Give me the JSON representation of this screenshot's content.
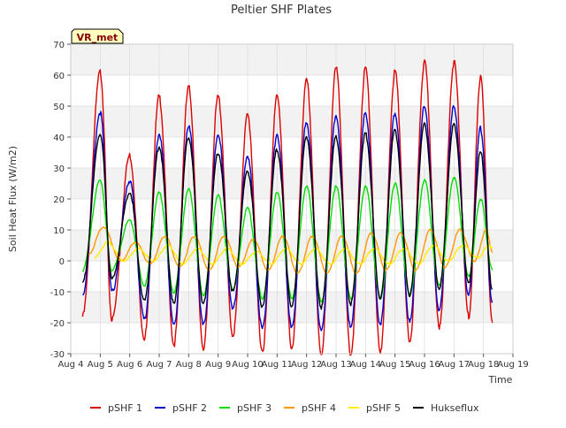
{
  "chart_data": {
    "type": "line",
    "title": "Peltier SHF Plates",
    "xlabel": "Time",
    "ylabel": "Soil Heat Flux (W/m2)",
    "badge": "VR_met",
    "ylim": [
      -30,
      70
    ],
    "yticks": [
      -30,
      -20,
      -10,
      0,
      10,
      20,
      30,
      40,
      50,
      60,
      70
    ],
    "xlim": [
      4,
      19
    ],
    "xticks": [
      {
        "day": 4,
        "label": "Aug 4"
      },
      {
        "day": 5,
        "label": "Aug 5"
      },
      {
        "day": 6,
        "label": "Aug 6"
      },
      {
        "day": 7,
        "label": "Aug 7"
      },
      {
        "day": 8,
        "label": "Aug 8"
      },
      {
        "day": 9,
        "label": "Aug 9"
      },
      {
        "day": 10,
        "label": "Aug 10"
      },
      {
        "day": 11,
        "label": "Aug 11"
      },
      {
        "day": 12,
        "label": "Aug 12"
      },
      {
        "day": 13,
        "label": "Aug 13"
      },
      {
        "day": 14,
        "label": "Aug 14"
      },
      {
        "day": 15,
        "label": "Aug 15"
      },
      {
        "day": 16,
        "label": "Aug 16"
      },
      {
        "day": 17,
        "label": "Aug 17"
      },
      {
        "day": 18,
        "label": "Aug 18"
      },
      {
        "day": 19,
        "label": "Aug 19"
      }
    ],
    "grid": true,
    "legend": "bottom",
    "series": [
      {
        "name": "pSHF 1",
        "color": "#dd0000",
        "peak_day": [
          5.0,
          6.0,
          7.0,
          8.0,
          9.0,
          10.0,
          11.0,
          12.0,
          13.0,
          14.0,
          15.0,
          16.0,
          17.0,
          17.9
        ],
        "peak_value": [
          61,
          34,
          53,
          56,
          53,
          47,
          53,
          58,
          62,
          62,
          61,
          64,
          64,
          59
        ],
        "trough_day": [
          4.4,
          5.4,
          6.5,
          7.5,
          8.5,
          9.5,
          10.5,
          11.5,
          12.5,
          13.5,
          14.5,
          15.5,
          16.5,
          17.5,
          18.3
        ],
        "trough_value": [
          -18,
          -19,
          -25,
          -27,
          -28,
          -24,
          -29,
          -28,
          -30,
          -30,
          -29,
          -26,
          -21,
          -18,
          -20
        ]
      },
      {
        "name": "pSHF 2",
        "color": "#0000cc",
        "peak_day": [
          5.0,
          6.0,
          7.0,
          8.0,
          9.0,
          10.0,
          11.0,
          12.0,
          13.0,
          14.0,
          15.0,
          16.0,
          17.0,
          17.9
        ],
        "peak_value": [
          48,
          26,
          41,
          44,
          41,
          34,
          41,
          45,
          47,
          48,
          48,
          50,
          50,
          43
        ],
        "trough_day": [
          4.4,
          5.4,
          6.5,
          7.5,
          8.5,
          9.5,
          10.5,
          11.5,
          12.5,
          13.5,
          14.5,
          15.5,
          16.5,
          17.5,
          18.3
        ],
        "trough_value": [
          -11,
          -10,
          -19,
          -21,
          -21,
          -16,
          -22,
          -22,
          -23,
          -22,
          -21,
          -20,
          -16,
          -11,
          -13
        ]
      },
      {
        "name": "pSHF 3",
        "color": "#00dd00",
        "peak_day": [
          5.0,
          6.0,
          7.0,
          8.0,
          9.0,
          10.0,
          11.0,
          12.0,
          13.0,
          14.0,
          15.0,
          16.0,
          17.0,
          17.9
        ],
        "peak_value": [
          26,
          13,
          22,
          23,
          21,
          17,
          22,
          24,
          24,
          24,
          25,
          26,
          27,
          20
        ],
        "trough_day": [
          4.4,
          5.4,
          6.5,
          7.5,
          8.5,
          9.5,
          10.5,
          11.5,
          12.5,
          13.5,
          14.5,
          15.5,
          16.5,
          17.5,
          18.3
        ],
        "trough_value": [
          -3,
          -3,
          -8,
          -10,
          -11,
          -9,
          -12,
          -12,
          -13,
          -12,
          -12,
          -11,
          -8,
          -5,
          -3
        ]
      },
      {
        "name": "pSHF 4",
        "color": "#ff9900",
        "peak_day": [
          5.1,
          6.2,
          7.2,
          8.2,
          9.2,
          10.2,
          11.2,
          12.2,
          13.2,
          14.2,
          15.2,
          16.2,
          17.2,
          18.1
        ],
        "peak_value": [
          11,
          6,
          8,
          8,
          8,
          7,
          8,
          8,
          8,
          9,
          9,
          10,
          10,
          10
        ],
        "trough_day": [
          4.6,
          5.7,
          6.7,
          7.7,
          8.7,
          9.7,
          10.7,
          11.7,
          12.7,
          13.7,
          14.7,
          15.7,
          16.7,
          17.7,
          18.3
        ],
        "trough_value": [
          2,
          0,
          -1,
          -2,
          -3,
          -2,
          -3,
          -4,
          -4,
          -4,
          -3,
          -3,
          -2,
          0,
          3
        ]
      },
      {
        "name": "pSHF 5",
        "color": "#ffee00",
        "peak_day": [
          5.25,
          6.3,
          7.3,
          8.3,
          9.3,
          10.3,
          11.3,
          12.3,
          13.3,
          14.3,
          15.3,
          16.3,
          17.3,
          18.2
        ],
        "peak_value": [
          6,
          4,
          5,
          4,
          4,
          3,
          4,
          4,
          4,
          4,
          4,
          5,
          5,
          5
        ],
        "trough_day": [
          4.8,
          5.8,
          6.8,
          7.8,
          8.8,
          9.8,
          10.8,
          11.8,
          12.8,
          13.8,
          14.8,
          15.8,
          16.8,
          17.8,
          18.3
        ],
        "trough_value": [
          1,
          0,
          0,
          -1,
          -1,
          -1,
          -1,
          -1,
          -1,
          -1,
          -1,
          -1,
          0,
          1,
          4
        ]
      },
      {
        "name": "Hukseflux",
        "color": "#000000",
        "peak_day": [
          5.0,
          6.0,
          7.0,
          8.0,
          9.0,
          10.0,
          11.0,
          12.0,
          13.0,
          14.0,
          15.0,
          16.0,
          17.0,
          17.9
        ],
        "peak_value": [
          41,
          22,
          37,
          40,
          35,
          29,
          36,
          40,
          40,
          41,
          42,
          44,
          44,
          35
        ],
        "trough_day": [
          4.4,
          5.4,
          6.5,
          7.5,
          8.5,
          9.5,
          10.5,
          11.5,
          12.5,
          13.5,
          14.5,
          15.5,
          16.5,
          17.5,
          18.3
        ],
        "trough_value": [
          -7,
          -6,
          -13,
          -14,
          -14,
          -10,
          -15,
          -15,
          -15,
          -14,
          -12,
          -11,
          -9,
          -7,
          -9
        ]
      }
    ]
  }
}
